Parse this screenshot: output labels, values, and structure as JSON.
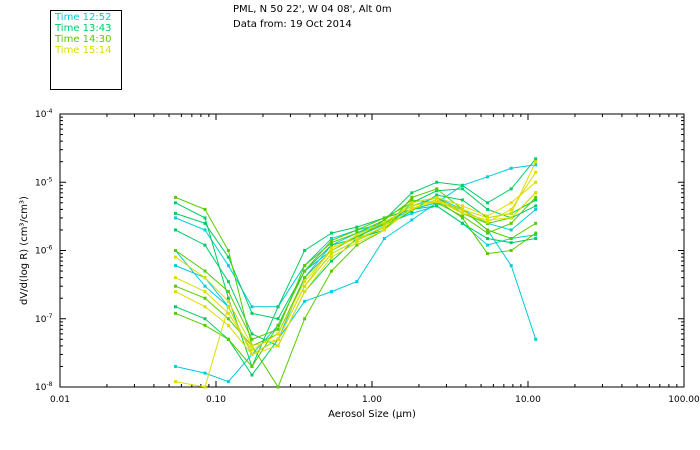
{
  "header": {
    "location": "PML, N 50 22', W 04 08', Alt 0m",
    "date": "Data from: 19 Oct 2014"
  },
  "legend": [
    {
      "label": "Time 12:52",
      "color": "#00ccdd"
    },
    {
      "label": "Time 13:43",
      "color": "#00cc66"
    },
    {
      "label": "Time 14:30",
      "color": "#55cc00"
    },
    {
      "label": "Time 15:14",
      "color": "#dddd00"
    }
  ],
  "chart_data": {
    "type": "line",
    "xscale": "log",
    "yscale": "log",
    "xlim": [
      0.01,
      100
    ],
    "ylim": [
      1e-08,
      0.0001
    ],
    "xlabel": "Aerosol Size (µm)",
    "ylabel": "dV/d(log R) (cm³/cm³)",
    "x_tick_labels": [
      "0.01",
      "0.10",
      "1.00",
      "10.00",
      "100.00"
    ],
    "y_tick_labels": [
      {
        "base": "10",
        "exp": "-4"
      },
      {
        "base": "10",
        "exp": "-5"
      },
      {
        "base": "10",
        "exp": "-6"
      },
      {
        "base": "10",
        "exp": "-7"
      },
      {
        "base": "10",
        "exp": "-8"
      }
    ],
    "x": [
      0.055,
      0.085,
      0.12,
      0.17,
      0.25,
      0.37,
      0.55,
      0.8,
      1.2,
      1.8,
      2.6,
      3.8,
      5.5,
      7.8,
      11.2
    ],
    "series": [
      {
        "color": "#00ccdd",
        "values": [
          1e-06,
          3e-07,
          1.5e-07,
          3e-08,
          5e-08,
          4e-07,
          1.2e-06,
          1.8e-06,
          2.5e-06,
          4e-06,
          5e-06,
          4e-06,
          2e-06,
          6e-07,
          5e-08
        ]
      },
      {
        "color": "#00ccdd",
        "values": [
          6e-07,
          4e-07,
          1.5e-07,
          3e-08,
          8e-08,
          5e-07,
          1e-06,
          1.6e-06,
          2.4e-06,
          3.5e-06,
          4.5e-06,
          2.5e-06,
          1.2e-06,
          1.5e-06,
          1.7e-06
        ]
      },
      {
        "color": "#00ccdd",
        "values": [
          2e-08,
          1.6e-08,
          1.2e-08,
          3e-08,
          5e-08,
          1.8e-07,
          2.5e-07,
          3.5e-07,
          1.5e-06,
          2.8e-06,
          5e-06,
          9e-06,
          1.2e-05,
          1.6e-05,
          1.8e-05
        ]
      },
      {
        "color": "#00ccdd",
        "values": [
          3e-06,
          2e-06,
          6e-07,
          1.5e-07,
          1.5e-07,
          6e-07,
          1.5e-06,
          2e-06,
          2.5e-06,
          4.5e-06,
          6e-06,
          4e-06,
          2.5e-06,
          2e-06,
          4e-06
        ]
      },
      {
        "color": "#00cc66",
        "values": [
          5e-06,
          3e-06,
          2e-07,
          2e-08,
          1.5e-07,
          1e-06,
          1.8e-06,
          2.2e-06,
          3e-06,
          4e-06,
          4.5e-06,
          2.5e-06,
          1.5e-06,
          1.3e-06,
          1.5e-06
        ]
      },
      {
        "color": "#00cc66",
        "values": [
          3.5e-06,
          2.5e-06,
          8e-07,
          1.2e-07,
          1e-07,
          5e-07,
          1.2e-06,
          1.5e-06,
          2.8e-06,
          7e-06,
          1e-05,
          9e-06,
          5e-06,
          8e-06,
          2.2e-05
        ]
      },
      {
        "color": "#00cc66",
        "values": [
          1.5e-07,
          1e-07,
          5e-08,
          1.5e-08,
          5e-08,
          3e-07,
          9e-07,
          1.4e-06,
          2.2e-06,
          3.8e-06,
          6.5e-06,
          5.5e-06,
          3e-06,
          3.5e-06,
          5.5e-06
        ]
      },
      {
        "color": "#00cc66",
        "values": [
          2e-06,
          1.2e-06,
          3.5e-07,
          6e-08,
          4e-08,
          2.5e-07,
          7e-07,
          1.5e-06,
          2e-06,
          5e-06,
          7.5e-06,
          8e-06,
          4e-06,
          3e-06,
          4.5e-06
        ]
      },
      {
        "color": "#55cc00",
        "values": [
          6e-06,
          4e-06,
          1e-06,
          4e-08,
          1e-08,
          1e-07,
          5e-07,
          1.2e-06,
          2e-06,
          6e-06,
          8e-06,
          4e-06,
          2e-06,
          1.5e-06,
          2.5e-06
        ]
      },
      {
        "color": "#55cc00",
        "values": [
          3e-07,
          2e-07,
          1e-07,
          4e-08,
          6e-08,
          4e-07,
          1e-06,
          1.6e-06,
          2.5e-06,
          4.5e-06,
          5.5e-06,
          3e-06,
          9e-07,
          1e-06,
          1.8e-06
        ]
      },
      {
        "color": "#55cc00",
        "values": [
          1.2e-07,
          8e-08,
          5e-08,
          2e-08,
          8e-08,
          5e-07,
          1.4e-06,
          2e-06,
          3e-06,
          5e-06,
          6e-06,
          3.5e-06,
          2.5e-06,
          3e-06,
          7e-06
        ]
      },
      {
        "color": "#55cc00",
        "values": [
          1e-06,
          5e-07,
          2.5e-07,
          5e-08,
          7e-08,
          6e-07,
          1.3e-06,
          1.8e-06,
          2.8e-06,
          5.5e-06,
          5e-06,
          3.2e-06,
          1.8e-06,
          2.5e-06,
          6e-06
        ]
      },
      {
        "color": "#dddd00",
        "values": [
          1.2e-08,
          1e-08,
          1.5e-07,
          3e-08,
          5e-08,
          3e-07,
          1.1e-06,
          1.5e-06,
          2.2e-06,
          4e-06,
          5.5e-06,
          4e-06,
          3e-06,
          3.5e-06,
          2e-05
        ]
      },
      {
        "color": "#dddd00",
        "values": [
          4e-07,
          2.5e-07,
          1.2e-07,
          3.5e-08,
          6e-08,
          3.5e-07,
          1e-06,
          1.7e-06,
          2.6e-06,
          4.5e-06,
          5.5e-06,
          3.5e-06,
          2.8e-06,
          3e-06,
          7e-06
        ]
      },
      {
        "color": "#dddd00",
        "values": [
          8e-07,
          4e-07,
          1.8e-07,
          4e-08,
          5e-08,
          3e-07,
          9e-07,
          1.4e-06,
          2.3e-06,
          5e-06,
          6e-06,
          4.5e-06,
          3.2e-06,
          5e-06,
          1e-05
        ]
      },
      {
        "color": "#dddd00",
        "values": [
          2.5e-07,
          1.5e-07,
          8e-08,
          3e-08,
          4e-08,
          2.5e-07,
          8e-07,
          1.3e-06,
          2e-06,
          4.2e-06,
          5.2e-06,
          3.8e-06,
          2.6e-06,
          4e-06,
          1.4e-05
        ]
      }
    ]
  }
}
